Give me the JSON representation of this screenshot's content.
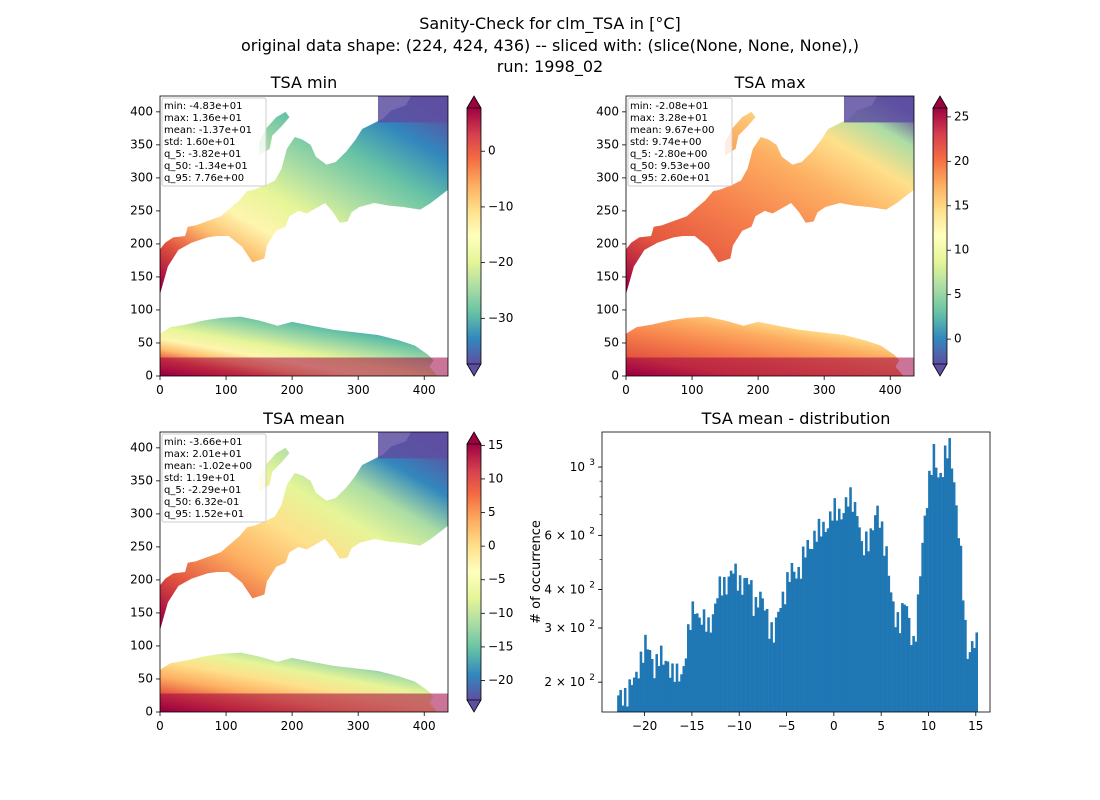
{
  "figure": {
    "title_lines": [
      "Sanity-Check for clm_TSA in [°C]",
      "original data shape: (224, 424, 436) -- sliced with: (slice(None, None, None),)",
      "run: 1998_02"
    ]
  },
  "chart_data": [
    {
      "type": "heatmap",
      "title": "TSA min",
      "xlim": [
        0,
        436
      ],
      "ylim": [
        0,
        424
      ],
      "xticks": [
        0,
        100,
        200,
        300,
        400
      ],
      "yticks": [
        0,
        50,
        100,
        150,
        200,
        250,
        300,
        350,
        400
      ],
      "colorbar": {
        "cmap": "Spectral_r",
        "range": [
          -38.2,
          7.76
        ],
        "ticks": [
          0,
          -10,
          -20,
          -30
        ],
        "extend": "both"
      },
      "stats": [
        "min: -4.83e+01",
        "max: 1.36e+01",
        "mean: -1.37e+01",
        "std: 1.60e+01",
        "q_5: -3.82e+01",
        "q_50: -1.34e+01",
        "q_95: 7.76e+00"
      ]
    },
    {
      "type": "heatmap",
      "title": "TSA max",
      "xlim": [
        0,
        436
      ],
      "ylim": [
        0,
        424
      ],
      "xticks": [
        0,
        100,
        200,
        300,
        400
      ],
      "yticks": [
        0,
        50,
        100,
        150,
        200,
        250,
        300,
        350,
        400
      ],
      "colorbar": {
        "cmap": "Spectral_r",
        "range": [
          -2.8,
          26.0
        ],
        "ticks": [
          25,
          20,
          15,
          10,
          5,
          0
        ],
        "extend": "both"
      },
      "stats": [
        "min: -2.08e+01",
        "max: 3.28e+01",
        "mean: 9.67e+00",
        "std: 9.74e+00",
        "q_5: -2.80e+00",
        "q_50: 9.53e+00",
        "q_95: 2.60e+01"
      ]
    },
    {
      "type": "heatmap",
      "title": "TSA mean",
      "xlim": [
        0,
        436
      ],
      "ylim": [
        0,
        424
      ],
      "xticks": [
        0,
        100,
        200,
        300,
        400
      ],
      "yticks": [
        0,
        50,
        100,
        150,
        200,
        250,
        300,
        350,
        400
      ],
      "colorbar": {
        "cmap": "Spectral_r",
        "range": [
          -22.9,
          15.2
        ],
        "ticks": [
          15,
          10,
          5,
          0,
          -5,
          -10,
          -15,
          -20
        ],
        "extend": "both"
      },
      "stats": [
        "min: -3.66e+01",
        "max: 2.01e+01",
        "mean: -1.02e+00",
        "std: 1.19e+01",
        "q_5: -2.29e+01",
        "q_50: 6.32e-01",
        "q_95: 1.52e+01"
      ]
    },
    {
      "type": "bar",
      "title": "TSA mean - distribution",
      "ylabel": "# of occurrence",
      "xlabel": "",
      "yscale": "log",
      "xlim": [
        -24.5,
        16.5
      ],
      "ylim": [
        160,
        1300
      ],
      "xticks": [
        -20,
        -15,
        -10,
        -5,
        0,
        5,
        10,
        15
      ],
      "yticks": [
        {
          "value": 200,
          "label": "2 × 10",
          "exp": "2"
        },
        {
          "value": 300,
          "label": "3 × 10",
          "exp": "2"
        },
        {
          "value": 400,
          "label": "4 × 10",
          "exp": "2"
        },
        {
          "value": 600,
          "label": "6 × 10",
          "exp": "2"
        },
        {
          "value": 1000,
          "label": "10",
          "exp": "3"
        }
      ],
      "bin_range": [
        -22.9,
        15.2
      ],
      "profile": [
        [
          -22.9,
          170
        ],
        [
          -22.2,
          185
        ],
        [
          -21.6,
          190
        ],
        [
          -21.0,
          200
        ],
        [
          -20.5,
          240
        ],
        [
          -20.0,
          260
        ],
        [
          -19.5,
          250
        ],
        [
          -19.0,
          230
        ],
        [
          -18.5,
          240
        ],
        [
          -18.0,
          230
        ],
        [
          -17.5,
          240
        ],
        [
          -17.0,
          210
        ],
        [
          -16.5,
          205
        ],
        [
          -16.0,
          220
        ],
        [
          -15.6,
          260
        ],
        [
          -15.2,
          300
        ],
        [
          -14.7,
          360
        ],
        [
          -14.2,
          330
        ],
        [
          -13.8,
          310
        ],
        [
          -13.3,
          300
        ],
        [
          -12.9,
          330
        ],
        [
          -12.4,
          370
        ],
        [
          -12.0,
          400
        ],
        [
          -11.4,
          430
        ],
        [
          -10.8,
          450
        ],
        [
          -10.3,
          440
        ],
        [
          -9.8,
          430
        ],
        [
          -9.4,
          420
        ],
        [
          -8.8,
          410
        ],
        [
          -8.4,
          360
        ],
        [
          -8.0,
          380
        ],
        [
          -7.4,
          350
        ],
        [
          -7.0,
          330
        ],
        [
          -6.6,
          300
        ],
        [
          -6.3,
          280
        ],
        [
          -6.0,
          310
        ],
        [
          -5.5,
          380
        ],
        [
          -5.0,
          420
        ],
        [
          -4.4,
          450
        ],
        [
          -4.0,
          460
        ],
        [
          -3.5,
          480
        ],
        [
          -3.0,
          520
        ],
        [
          -2.4,
          570
        ],
        [
          -2.0,
          620
        ],
        [
          -1.5,
          600
        ],
        [
          -1.0,
          640
        ],
        [
          -0.5,
          690
        ],
        [
          0.0,
          700
        ],
        [
          0.5,
          710
        ],
        [
          1.0,
          740
        ],
        [
          1.5,
          760
        ],
        [
          2.0,
          780
        ],
        [
          2.5,
          740
        ],
        [
          3.0,
          500
        ],
        [
          3.5,
          580
        ],
        [
          4.0,
          640
        ],
        [
          4.5,
          700
        ],
        [
          5.0,
          640
        ],
        [
          5.5,
          560
        ],
        [
          6.0,
          380
        ],
        [
          6.4,
          320
        ],
        [
          7.0,
          330
        ],
        [
          7.5,
          360
        ],
        [
          8.0,
          300
        ],
        [
          8.5,
          270
        ],
        [
          9.0,
          380
        ],
        [
          9.4,
          560
        ],
        [
          9.8,
          800
        ],
        [
          10.2,
          1000
        ],
        [
          10.6,
          1080
        ],
        [
          11.0,
          900
        ],
        [
          11.4,
          1000
        ],
        [
          11.8,
          1130
        ],
        [
          12.2,
          1120
        ],
        [
          12.6,
          950
        ],
        [
          13.0,
          740
        ],
        [
          13.4,
          520
        ],
        [
          13.8,
          300
        ],
        [
          14.2,
          240
        ],
        [
          14.6,
          280
        ],
        [
          15.0,
          270
        ],
        [
          15.2,
          250
        ]
      ]
    }
  ]
}
